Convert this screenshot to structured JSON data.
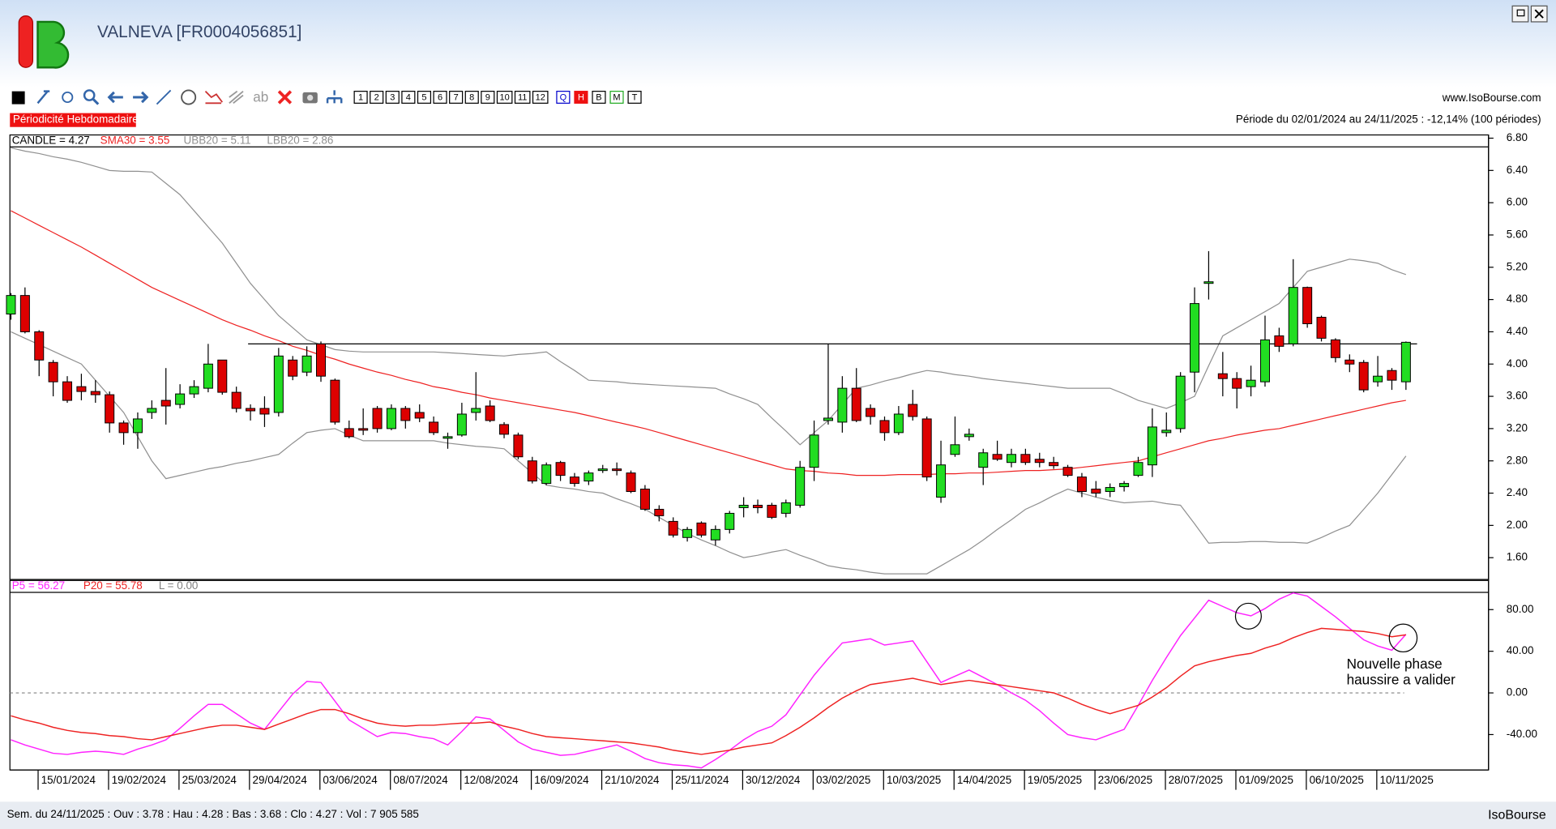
{
  "window": {
    "title": "VALNEVA [FR0004056851]",
    "site": "www.IsoBourse.com",
    "periodicity": "Périodicité Hebdomadaire",
    "period": "Période du 02/01/2024 au 24/11/2025 : -12,14% (100 périodes)",
    "status": "Sem. du 24/11/2025 : Ouv : 3.78 : Hau : 4.28 : Bas : 3.68 : Clo : 4.27 : Vol : 7 905 585",
    "brand": "IsoBourse",
    "text_tool": "ab",
    "periods": [
      "1",
      "2",
      "3",
      "4",
      "5",
      "6",
      "7",
      "8",
      "9",
      "10",
      "11",
      "12"
    ],
    "intervals": [
      "Q",
      "H",
      "B",
      "M",
      "T"
    ],
    "annotation": [
      "Nouvelle phase",
      "haussire a valider"
    ]
  },
  "chart_data": [
    {
      "type": "candlestick",
      "legend": "CANDLE = 4.27",
      "up_color": "#22dd22",
      "down_color": "#dd0000",
      "categories": [
        null,
        null,
        "15/01/2024",
        null,
        null,
        null,
        null,
        "19/02/2024",
        null,
        null,
        null,
        null,
        "25/03/2024",
        null,
        null,
        null,
        null,
        "29/04/2024",
        null,
        null,
        null,
        null,
        "03/06/2024",
        null,
        null,
        null,
        null,
        "08/07/2024",
        null,
        null,
        null,
        null,
        "12/08/2024",
        null,
        null,
        null,
        null,
        "16/09/2024",
        null,
        null,
        null,
        null,
        "21/10/2024",
        null,
        null,
        null,
        null,
        "25/11/2024",
        null,
        null,
        null,
        null,
        "30/12/2024",
        null,
        null,
        null,
        null,
        "03/02/2025",
        null,
        null,
        null,
        null,
        "10/03/2025",
        null,
        null,
        null,
        null,
        "14/04/2025",
        null,
        null,
        null,
        null,
        "19/05/2025",
        null,
        null,
        null,
        null,
        "23/06/2025",
        null,
        null,
        null,
        null,
        "28/07/2025",
        null,
        null,
        null,
        null,
        "01/09/2025",
        null,
        null,
        null,
        null,
        "06/10/2025",
        null,
        null,
        null,
        null,
        "10/11/2025",
        null,
        null
      ],
      "open": [
        4.62,
        4.85,
        4.4,
        4.02,
        3.78,
        3.72,
        3.66,
        3.62,
        3.27,
        3.15,
        3.4,
        3.55,
        3.5,
        3.63,
        3.7,
        4.05,
        3.65,
        3.45,
        3.45,
        3.4,
        4.05,
        3.9,
        4.25,
        3.8,
        3.2,
        3.2,
        3.45,
        3.2,
        3.45,
        3.4,
        3.28,
        3.08,
        3.12,
        3.4,
        3.48,
        3.25,
        3.12,
        2.8,
        2.52,
        2.78,
        2.6,
        2.55,
        2.68,
        2.7,
        2.65,
        2.45,
        2.2,
        2.05,
        1.85,
        2.03,
        1.82,
        1.95,
        2.22,
        2.25,
        2.25,
        2.15,
        2.25,
        2.72,
        3.3,
        3.28,
        3.7,
        3.45,
        3.3,
        3.15,
        3.5,
        3.32,
        2.35,
        2.88,
        3.1,
        2.72,
        2.88,
        2.78,
        2.88,
        2.82,
        2.78,
        2.72,
        2.6,
        2.45,
        2.42,
        2.48,
        2.62,
        2.75,
        3.15,
        3.2,
        3.9,
        5.0,
        3.88,
        3.82,
        3.72,
        3.78,
        4.35,
        4.25,
        4.95,
        4.58,
        4.3,
        4.05,
        4.02,
        3.78,
        3.92,
        3.78
      ],
      "high": [
        4.88,
        4.95,
        4.42,
        4.05,
        3.85,
        3.88,
        3.8,
        3.66,
        3.3,
        3.4,
        3.55,
        3.95,
        3.75,
        3.8,
        4.25,
        4.05,
        3.72,
        3.5,
        3.6,
        4.2,
        4.1,
        4.22,
        4.28,
        3.82,
        3.3,
        3.45,
        3.48,
        3.5,
        3.48,
        3.5,
        3.35,
        3.15,
        3.52,
        3.9,
        3.55,
        3.28,
        3.15,
        2.85,
        2.78,
        2.8,
        2.65,
        2.68,
        2.75,
        2.78,
        2.68,
        2.5,
        2.25,
        2.1,
        1.98,
        2.05,
        2.0,
        2.18,
        2.35,
        2.32,
        2.28,
        2.32,
        2.8,
        3.3,
        4.25,
        3.85,
        3.95,
        3.5,
        3.35,
        3.48,
        3.68,
        3.35,
        3.05,
        3.35,
        3.2,
        2.95,
        3.05,
        2.95,
        2.95,
        2.9,
        2.85,
        2.75,
        2.65,
        2.55,
        2.52,
        2.55,
        2.85,
        3.45,
        3.4,
        3.9,
        4.95,
        5.4,
        4.15,
        3.9,
        3.98,
        4.6,
        4.45,
        5.3,
        4.96,
        4.6,
        4.32,
        4.12,
        4.05,
        4.1,
        3.95,
        4.28
      ],
      "low": [
        4.55,
        4.38,
        3.85,
        3.6,
        3.52,
        3.55,
        3.52,
        3.15,
        3.0,
        2.95,
        3.32,
        3.25,
        3.45,
        3.58,
        3.65,
        3.62,
        3.4,
        3.3,
        3.22,
        3.35,
        3.8,
        3.85,
        3.78,
        3.25,
        3.08,
        3.12,
        3.15,
        3.18,
        3.2,
        3.28,
        3.12,
        2.95,
        3.1,
        3.3,
        3.28,
        3.08,
        2.82,
        2.52,
        2.5,
        2.55,
        2.48,
        2.5,
        2.65,
        2.62,
        2.4,
        2.18,
        2.05,
        1.85,
        1.8,
        1.85,
        1.75,
        1.9,
        2.1,
        2.15,
        2.08,
        2.1,
        2.22,
        2.55,
        3.25,
        3.15,
        3.28,
        3.25,
        3.05,
        3.12,
        3.3,
        2.55,
        2.28,
        2.85,
        3.05,
        2.5,
        2.8,
        2.72,
        2.75,
        2.72,
        2.7,
        2.6,
        2.35,
        2.35,
        2.35,
        2.42,
        2.6,
        2.6,
        3.1,
        3.15,
        3.65,
        4.8,
        3.6,
        3.45,
        3.6,
        3.72,
        4.15,
        4.22,
        4.45,
        4.28,
        4.02,
        3.9,
        3.65,
        3.72,
        3.68,
        3.68
      ],
      "close": [
        4.85,
        4.4,
        4.05,
        3.78,
        3.55,
        3.66,
        3.62,
        3.27,
        3.15,
        3.32,
        3.45,
        3.48,
        3.63,
        3.72,
        4.0,
        3.65,
        3.45,
        3.42,
        3.38,
        4.1,
        3.85,
        4.1,
        3.85,
        3.28,
        3.1,
        3.18,
        3.2,
        3.45,
        3.3,
        3.33,
        3.15,
        3.1,
        3.38,
        3.45,
        3.3,
        3.13,
        2.85,
        2.55,
        2.75,
        2.62,
        2.52,
        2.65,
        2.7,
        2.68,
        2.42,
        2.2,
        2.12,
        1.88,
        1.95,
        1.88,
        1.95,
        2.15,
        2.25,
        2.22,
        2.1,
        2.28,
        2.72,
        3.12,
        3.33,
        3.7,
        3.3,
        3.35,
        3.15,
        3.38,
        3.35,
        2.6,
        2.75,
        3.0,
        3.13,
        2.9,
        2.82,
        2.88,
        2.78,
        2.78,
        2.74,
        2.62,
        2.42,
        2.4,
        2.47,
        2.52,
        2.78,
        3.22,
        3.18,
        3.85,
        4.75,
        5.02,
        3.82,
        3.7,
        3.8,
        4.3,
        4.22,
        4.95,
        4.5,
        4.32,
        4.08,
        4.0,
        3.68,
        3.85,
        3.8,
        4.27
      ],
      "series": [
        {
          "name": "SMA30 = 3.55",
          "color": "#ee2222",
          "values": [
            5.9,
            5.81,
            5.72,
            5.63,
            5.54,
            5.45,
            5.35,
            5.25,
            5.15,
            5.05,
            4.95,
            4.87,
            4.79,
            4.71,
            4.63,
            4.55,
            4.48,
            4.42,
            4.35,
            4.29,
            4.22,
            4.17,
            4.11,
            4.06,
            4.0,
            3.95,
            3.9,
            3.86,
            3.81,
            3.77,
            3.72,
            3.69,
            3.65,
            3.62,
            3.58,
            3.55,
            3.52,
            3.49,
            3.46,
            3.43,
            3.4,
            3.36,
            3.32,
            3.28,
            3.24,
            3.2,
            3.15,
            3.1,
            3.05,
            3.0,
            2.95,
            2.9,
            2.85,
            2.8,
            2.75,
            2.7,
            2.68,
            2.67,
            2.65,
            2.64,
            2.62,
            2.62,
            2.62,
            2.63,
            2.63,
            2.63,
            2.64,
            2.64,
            2.65,
            2.65,
            2.66,
            2.67,
            2.68,
            2.68,
            2.69,
            2.7,
            2.72,
            2.74,
            2.76,
            2.78,
            2.8,
            2.85,
            2.9,
            2.95,
            3.0,
            3.05,
            3.08,
            3.12,
            3.15,
            3.18,
            3.2,
            3.24,
            3.28,
            3.32,
            3.36,
            3.4,
            3.44,
            3.48,
            3.52,
            3.55
          ]
        },
        {
          "name": "UBB20 = 5.11",
          "color": "#909090",
          "values": [
            6.68,
            6.64,
            6.61,
            6.57,
            6.54,
            6.5,
            6.45,
            6.4,
            6.39,
            6.39,
            6.38,
            6.24,
            6.1,
            5.9,
            5.7,
            5.5,
            5.25,
            5.0,
            4.8,
            4.6,
            4.45,
            4.3,
            4.24,
            4.18,
            4.16,
            4.15,
            4.15,
            4.15,
            4.15,
            4.15,
            4.15,
            4.14,
            4.13,
            4.12,
            4.11,
            4.1,
            4.12,
            4.13,
            4.15,
            4.03,
            3.92,
            3.8,
            3.79,
            3.78,
            3.76,
            3.75,
            3.74,
            3.73,
            3.72,
            3.71,
            3.7,
            3.63,
            3.57,
            3.5,
            3.33,
            3.17,
            3.0,
            3.15,
            3.3,
            3.5,
            3.7,
            3.74,
            3.79,
            3.83,
            3.88,
            3.92,
            3.9,
            3.87,
            3.85,
            3.82,
            3.8,
            3.78,
            3.76,
            3.74,
            3.72,
            3.7,
            3.7,
            3.7,
            3.7,
            3.63,
            3.55,
            3.5,
            3.45,
            3.52,
            3.6,
            3.98,
            4.35,
            4.45,
            4.55,
            4.65,
            4.75,
            4.95,
            5.15,
            5.2,
            5.25,
            5.3,
            5.28,
            5.25,
            5.17,
            5.11
          ]
        },
        {
          "name": "LBB20 = 2.86",
          "color": "#909090",
          "values": [
            4.4,
            4.32,
            4.24,
            4.16,
            4.08,
            4.0,
            3.8,
            3.6,
            3.4,
            3.1,
            2.8,
            2.58,
            2.62,
            2.66,
            2.7,
            2.73,
            2.77,
            2.8,
            2.84,
            2.88,
            3.02,
            3.15,
            3.18,
            3.2,
            3.12,
            3.05,
            3.05,
            3.05,
            3.05,
            3.05,
            3.05,
            3.02,
            3.0,
            2.98,
            2.97,
            2.95,
            2.8,
            2.65,
            2.5,
            2.47,
            2.45,
            2.42,
            2.4,
            2.33,
            2.27,
            2.2,
            2.1,
            2.0,
            1.9,
            1.82,
            1.75,
            1.67,
            1.6,
            1.63,
            1.67,
            1.7,
            1.63,
            1.57,
            1.5,
            1.47,
            1.45,
            1.42,
            1.4,
            1.4,
            1.4,
            1.4,
            1.5,
            1.6,
            1.7,
            1.82,
            1.95,
            2.07,
            2.2,
            2.28,
            2.37,
            2.45,
            2.4,
            2.35,
            2.31,
            2.28,
            2.29,
            2.3,
            2.27,
            2.25,
            2.02,
            1.78,
            1.79,
            1.79,
            1.8,
            1.8,
            1.79,
            1.79,
            1.78,
            1.85,
            1.93,
            2.0,
            2.2,
            2.4,
            2.63,
            2.86
          ]
        }
      ],
      "hline": 4.25,
      "hline_color": "#000000",
      "ylim": [
        1.33,
        6.84
      ],
      "yticks": [
        {
          "value": 1.6,
          "label": "1.60"
        },
        {
          "value": 2.0,
          "label": "2.00"
        },
        {
          "value": 2.4,
          "label": "2.40"
        },
        {
          "value": 2.8,
          "label": "2.80"
        },
        {
          "value": 3.2,
          "label": "3.20"
        },
        {
          "value": 3.6,
          "label": "3.60"
        },
        {
          "value": 4.0,
          "label": "4.00"
        },
        {
          "value": 4.4,
          "label": "4.40"
        },
        {
          "value": 4.8,
          "label": "4.80"
        },
        {
          "value": 5.2,
          "label": "5.20"
        },
        {
          "value": 5.6,
          "label": "5.60"
        },
        {
          "value": 6.0,
          "label": "6.00"
        },
        {
          "value": 6.4,
          "label": "6.40"
        },
        {
          "value": 6.8,
          "label": "6.80"
        }
      ]
    },
    {
      "type": "line",
      "series": [
        {
          "name": "P5 = 56.27",
          "color": "#ff22ff",
          "values": [
            -45,
            -50,
            -54,
            -58,
            -59,
            -57,
            -56,
            -57,
            -59,
            -54,
            -50,
            -45,
            -34,
            -22,
            -11,
            -11,
            -20,
            -29,
            -35,
            -18,
            -1,
            11,
            10,
            -8,
            -26,
            -34,
            -42,
            -38,
            -39,
            -42,
            -44,
            -50,
            -37,
            -23,
            -25,
            -36,
            -47,
            -54,
            -57,
            -60,
            -59,
            -56,
            -53,
            -50,
            -56,
            -63,
            -67,
            -69,
            -70,
            -72,
            -64,
            -55,
            -45,
            -37,
            -32,
            -21,
            -2,
            17,
            33,
            48,
            50,
            52,
            46,
            48,
            50,
            30,
            10,
            16,
            22,
            15,
            8,
            0,
            -7,
            -17,
            -29,
            -40,
            -43,
            -45,
            -40,
            -35,
            -12,
            12,
            34,
            55,
            72,
            89,
            83,
            77,
            74,
            81,
            90,
            96,
            93,
            83,
            73,
            62,
            51,
            45,
            41,
            56.27
          ]
        },
        {
          "name": "P20 = 55.78",
          "color": "#ee2222",
          "values": [
            -22,
            -26,
            -29,
            -33,
            -36,
            -38,
            -39,
            -41,
            -42,
            -44,
            -45,
            -42,
            -39,
            -36,
            -33,
            -31,
            -31,
            -33,
            -35,
            -30,
            -25,
            -20,
            -16,
            -16,
            -20,
            -25,
            -29,
            -31,
            -32,
            -31,
            -31,
            -30,
            -29,
            -29,
            -28,
            -32,
            -35,
            -39,
            -42,
            -43,
            -44,
            -45,
            -46,
            -47,
            -48,
            -50,
            -52,
            -55,
            -57,
            -59,
            -57,
            -55,
            -52,
            -50,
            -48,
            -41,
            -33,
            -24,
            -14,
            -5,
            2,
            8,
            10,
            12,
            14,
            11,
            8,
            10,
            12,
            10,
            8,
            6,
            4,
            2,
            0,
            -5,
            -11,
            -16,
            -20,
            -16,
            -12,
            -4,
            5,
            16,
            26,
            30,
            33,
            36,
            38,
            43,
            47,
            53,
            58,
            62,
            61,
            60,
            59,
            57,
            54,
            55.78
          ]
        }
      ],
      "level": 0,
      "level_label": "L = 0.00",
      "level_color": "#808080",
      "ylim": [
        -74,
        108
      ],
      "yticks": [
        {
          "value": -40,
          "label": "-40.00"
        },
        {
          "value": 0,
          "label": "0.00"
        },
        {
          "value": 40,
          "label": "40.00"
        },
        {
          "value": 80,
          "label": "80.00"
        }
      ]
    }
  ]
}
